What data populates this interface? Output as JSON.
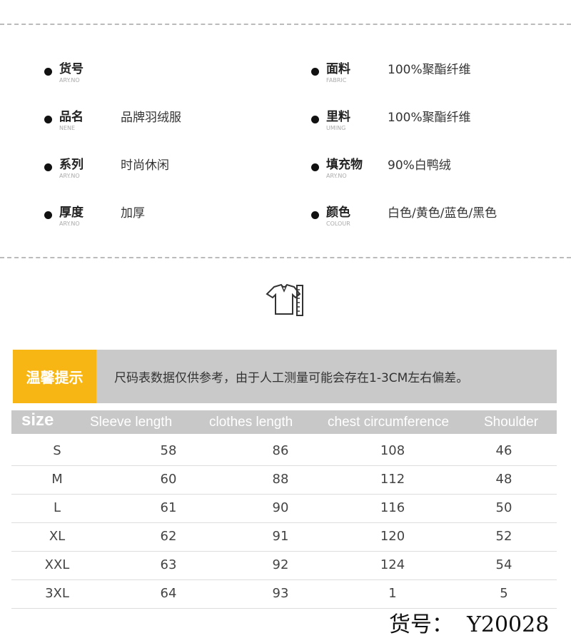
{
  "specs_left": [
    {
      "label": "货号",
      "sub": "ARY.NO",
      "value": ""
    },
    {
      "label": "品名",
      "sub": "NENE",
      "value": "品牌羽绒服"
    },
    {
      "label": "系列",
      "sub": "ARY.NO",
      "value": "时尚休闲"
    },
    {
      "label": "厚度",
      "sub": "ARY.NO",
      "value": "加厚"
    }
  ],
  "specs_right": [
    {
      "label": "面料",
      "sub": "FABRIC",
      "value": "100%聚酯纤维"
    },
    {
      "label": "里料",
      "sub": "UMING",
      "value": "100%聚酯纤维"
    },
    {
      "label": "填充物",
      "sub": "ARY.NO",
      "value": "90%白鸭绒"
    },
    {
      "label": "颜色",
      "sub": "COLOUR",
      "value": "白色/黄色/蓝色/黑色"
    }
  ],
  "icon": "shirt-ruler-icon",
  "banner": {
    "tag": "温馨提示",
    "note": "尺码表数据仅供参考，由于人工测量可能会存在1-3CM左右偏差。",
    "accent": "#f8b614"
  },
  "table": {
    "headers": [
      "size",
      "Sleeve length",
      "clothes length",
      "chest circumference",
      "Shoulder"
    ],
    "rows": [
      [
        "S",
        "58",
        "86",
        "108",
        "46"
      ],
      [
        "M",
        "60",
        "88",
        "112",
        "48"
      ],
      [
        "L",
        "61",
        "90",
        "116",
        "50"
      ],
      [
        "XL",
        "62",
        "91",
        "120",
        "52"
      ],
      [
        "XXL",
        "63",
        "92",
        "124",
        "54"
      ],
      [
        "3XL",
        "64",
        "93",
        "1",
        "5"
      ]
    ]
  },
  "stamp": "货号：  Y20028"
}
